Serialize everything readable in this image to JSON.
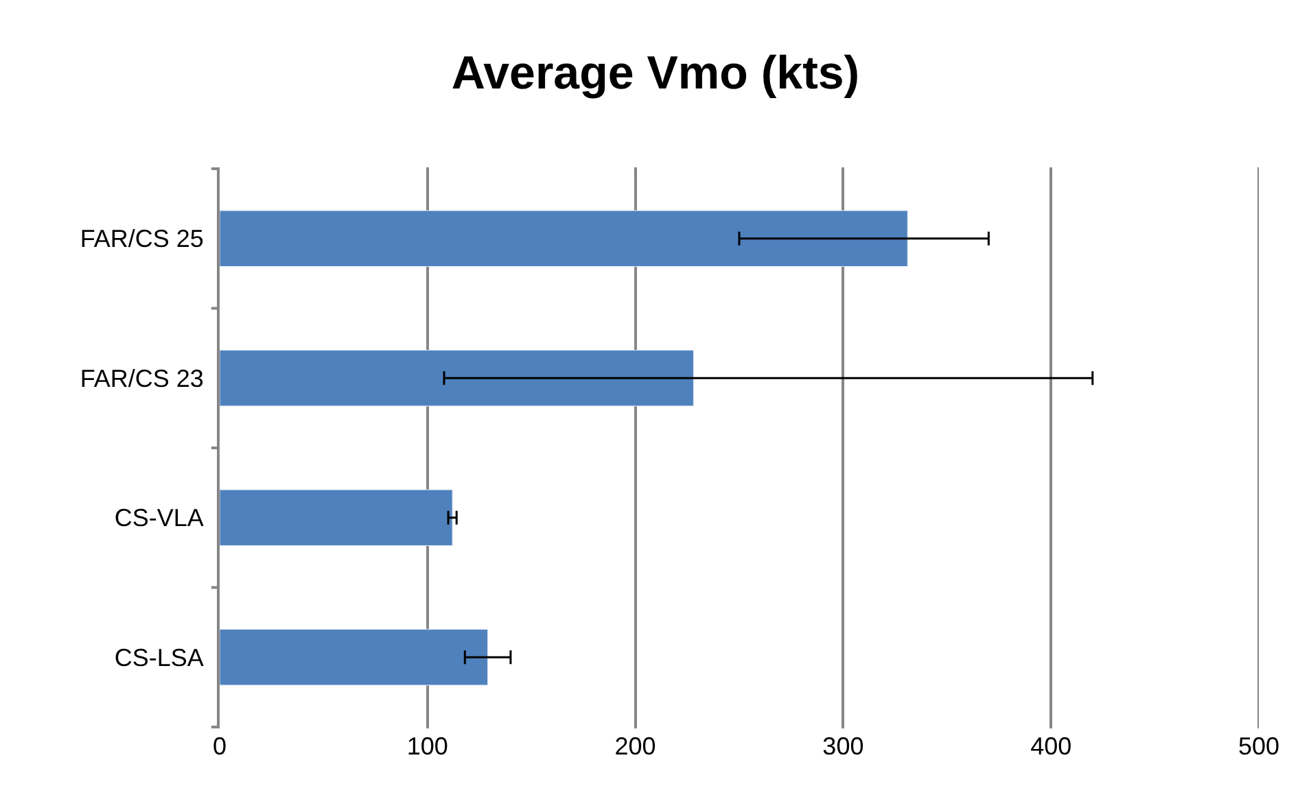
{
  "chart_data": {
    "type": "bar",
    "orientation": "horizontal",
    "title": "Average Vmo (kts)",
    "categories": [
      "FAR/CS 25",
      "FAR/CS 23",
      "CS-VLA",
      "CS-LSA"
    ],
    "values": [
      331,
      228,
      112,
      129
    ],
    "errors": [
      [
        250,
        370
      ],
      [
        108,
        420
      ],
      [
        110,
        114
      ],
      [
        118,
        140
      ]
    ],
    "color": "#4f81bd",
    "xlim": [
      0,
      500
    ],
    "xticks": [
      0,
      100,
      200,
      300,
      400,
      500
    ],
    "grid": "x"
  }
}
